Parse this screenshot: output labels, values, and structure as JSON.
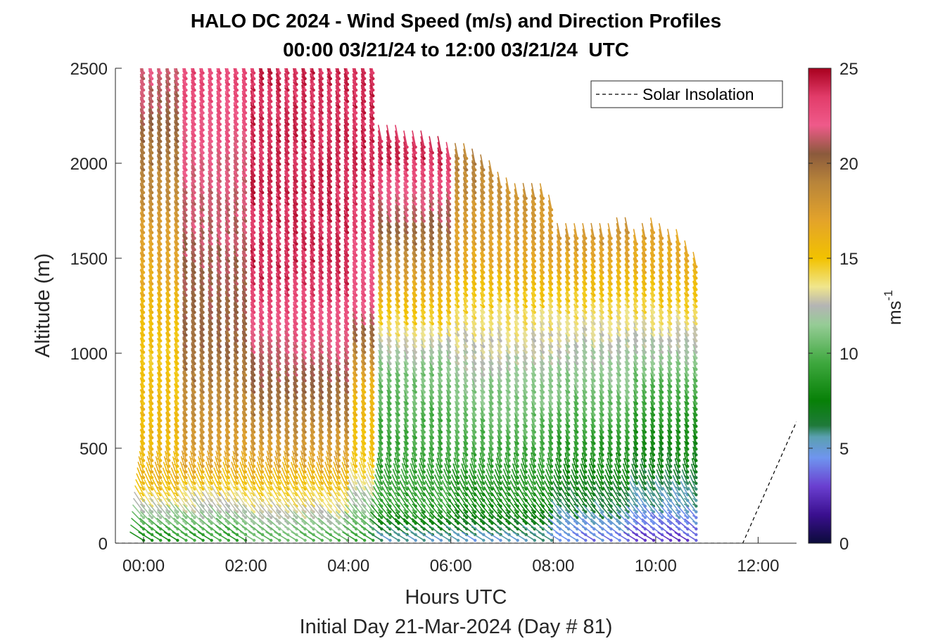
{
  "chart_data": {
    "type": "wind-barb-profile",
    "title": "HALO DC 2024 - Wind Speed (m/s) and Direction Profiles",
    "subtitle": "00:00 03/21/24 to 12:00 03/21/24  UTC",
    "xlabel": "Hours UTC",
    "xlabel2": "Initial Day 21-Mar-2024 (Day # 81)",
    "ylabel": "Altitude (m)",
    "colorbar_label": "ms",
    "colorbar_label_exp": "-1",
    "xlim_hours": [
      -0.55,
      12.75
    ],
    "ylim": [
      0,
      2500
    ],
    "x_ticks": [
      "00:00",
      "02:00",
      "04:00",
      "06:00",
      "08:00",
      "10:00",
      "12:00"
    ],
    "x_tick_hours": [
      0,
      2,
      4,
      6,
      8,
      10,
      12
    ],
    "y_ticks": [
      0,
      500,
      1000,
      1500,
      2000,
      2500
    ],
    "colorbar_ticks": [
      0,
      5,
      10,
      15,
      20,
      25
    ],
    "colorbar_range": [
      0,
      25
    ],
    "legend": {
      "entries": [
        "Solar Insolation"
      ],
      "position": "top-right"
    },
    "colormap": [
      {
        "v": 0,
        "c": "#0b0b3a"
      },
      {
        "v": 1.5,
        "c": "#3a0f8f"
      },
      {
        "v": 3,
        "c": "#6a3fd0"
      },
      {
        "v": 4.5,
        "c": "#6f95ef"
      },
      {
        "v": 5.6,
        "c": "#5aa0b0"
      },
      {
        "v": 6.2,
        "c": "#1f7a3a"
      },
      {
        "v": 7.5,
        "c": "#078007"
      },
      {
        "v": 9.5,
        "c": "#3ea83e"
      },
      {
        "v": 11.5,
        "c": "#96cc96"
      },
      {
        "v": 12.5,
        "c": "#b4b4b4"
      },
      {
        "v": 13.5,
        "c": "#f0e68c"
      },
      {
        "v": 15,
        "c": "#f2c200"
      },
      {
        "v": 17,
        "c": "#e3a32a"
      },
      {
        "v": 19,
        "c": "#b8843a"
      },
      {
        "v": 20.5,
        "c": "#8b5a3c"
      },
      {
        "v": 22,
        "c": "#ef5a8a"
      },
      {
        "v": 23.5,
        "c": "#e23c6a"
      },
      {
        "v": 25,
        "c": "#a8001e"
      }
    ],
    "speed_sections": [
      {
        "h0": 0.0,
        "h1": 0.75,
        "alt": [
          0,
          150,
          300,
          1000,
          1500,
          1900,
          2500
        ],
        "spd": [
          8,
          12,
          16,
          15,
          17,
          19,
          22
        ]
      },
      {
        "h0": 0.75,
        "h1": 2.0,
        "alt": [
          0,
          150,
          400,
          1000,
          1500,
          2000,
          2500
        ],
        "spd": [
          9,
          12,
          17,
          20,
          21,
          22,
          23
        ]
      },
      {
        "h0": 2.0,
        "h1": 4.0,
        "alt": [
          0,
          150,
          400,
          900,
          1400,
          2000,
          2500
        ],
        "spd": [
          10,
          13,
          17,
          21,
          24,
          24,
          24
        ]
      },
      {
        "h0": 4.0,
        "h1": 4.5,
        "alt": [
          0,
          150,
          400,
          800,
          1200,
          2000,
          2500
        ],
        "spd": [
          9,
          11,
          15,
          16,
          22,
          24,
          24
        ]
      },
      {
        "h0": 4.5,
        "h1": 6.0,
        "alt": [
          0,
          150,
          400,
          900,
          1200,
          1600,
          2000,
          2400
        ],
        "spd": [
          5,
          9,
          9,
          11,
          15,
          20,
          24,
          24
        ]
      },
      {
        "h0": 6.0,
        "h1": 8.0,
        "alt": [
          0,
          150,
          400,
          900,
          1200,
          1500,
          2000
        ],
        "spd": [
          5,
          8,
          9,
          12,
          14,
          17,
          19
        ]
      },
      {
        "h0": 8.0,
        "h1": 9.5,
        "alt": [
          0,
          150,
          400,
          800,
          1100,
          1400,
          1700
        ],
        "spd": [
          4,
          6,
          8,
          11,
          13,
          16,
          19
        ]
      },
      {
        "h0": 9.5,
        "h1": 10.85,
        "alt": [
          0,
          150,
          400,
          800,
          1100,
          1400,
          1700
        ],
        "spd": [
          3,
          5,
          7,
          10,
          13,
          16,
          18
        ]
      }
    ],
    "profile_tops": [
      {
        "h": 0.0,
        "top": 2500
      },
      {
        "h": 4.5,
        "top": 2500
      },
      {
        "h": 4.55,
        "top": 2150
      },
      {
        "h": 6.0,
        "top": 2050
      },
      {
        "h": 6.3,
        "top": 2040
      },
      {
        "h": 6.8,
        "top": 1950
      },
      {
        "h": 7.2,
        "top": 1830
      },
      {
        "h": 7.9,
        "top": 1830
      },
      {
        "h": 8.1,
        "top": 1620
      },
      {
        "h": 9.2,
        "top": 1620
      },
      {
        "h": 9.4,
        "top": 1690
      },
      {
        "h": 9.6,
        "top": 1600
      },
      {
        "h": 10.0,
        "top": 1650
      },
      {
        "h": 10.5,
        "top": 1570
      },
      {
        "h": 10.85,
        "top": 1450
      }
    ],
    "column_step_hours": 0.166,
    "barb_step_m": 30,
    "solar_insolation": [
      {
        "h": -0.55,
        "alt": 0
      },
      {
        "h": 11.7,
        "alt": 0
      },
      {
        "h": 12.75,
        "alt": 640
      }
    ]
  }
}
